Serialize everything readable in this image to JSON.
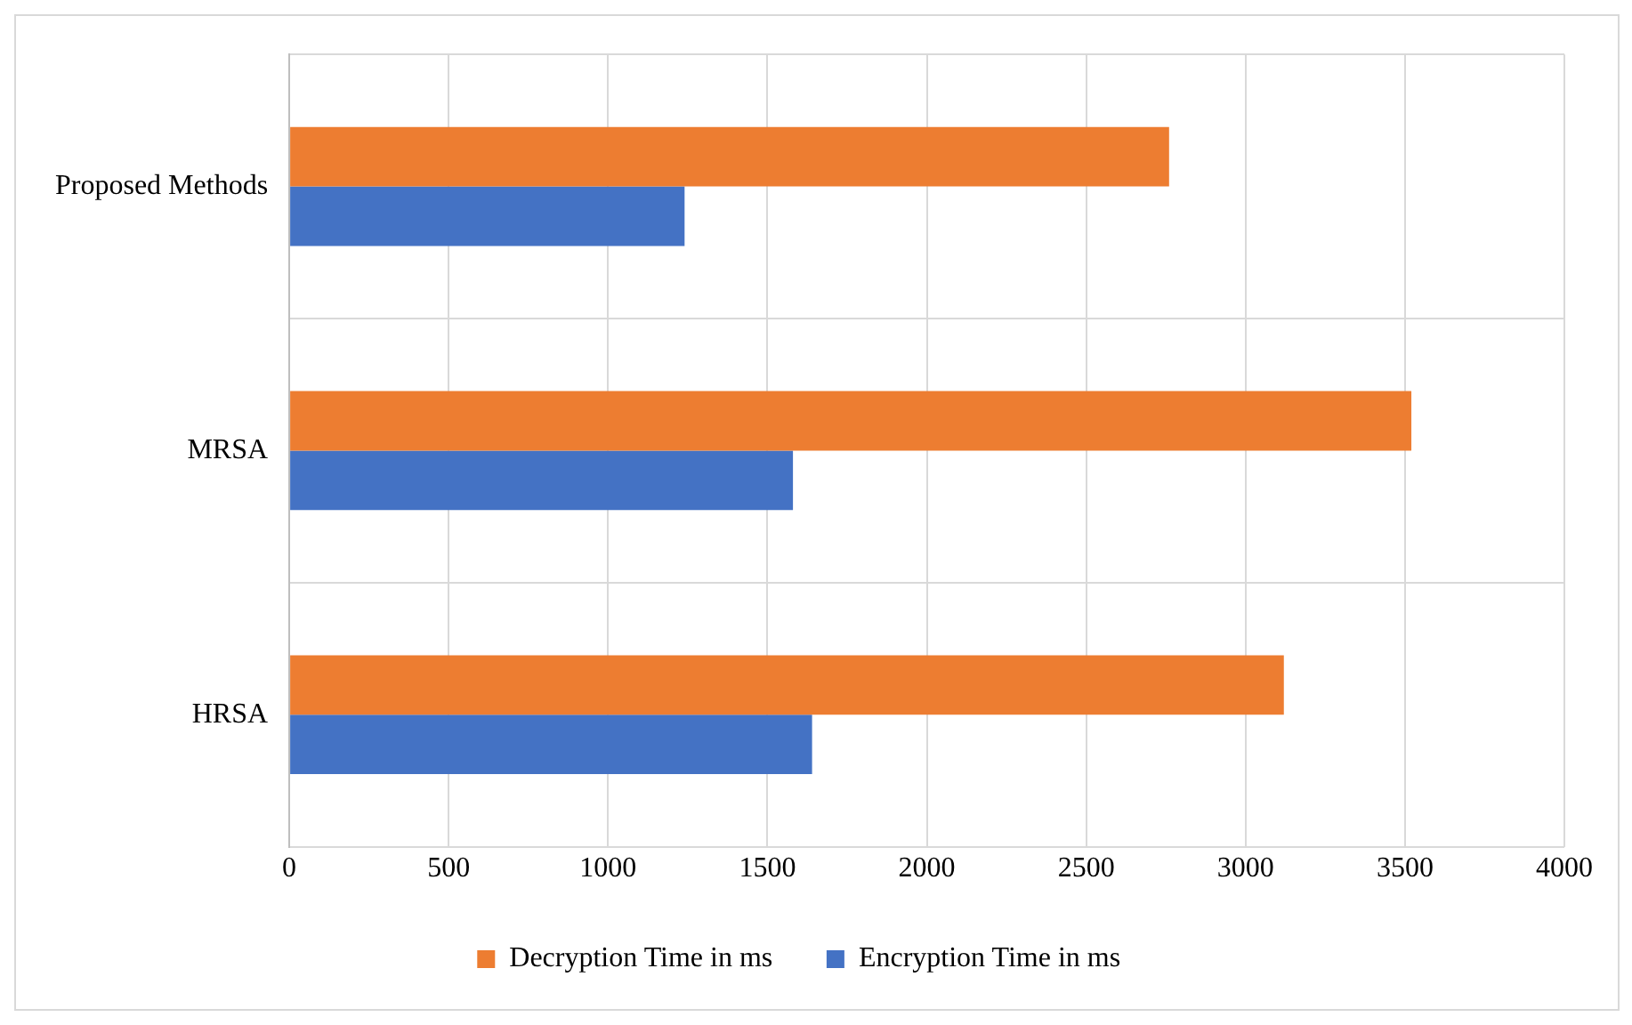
{
  "chart_data": {
    "type": "bar",
    "orientation": "horizontal",
    "categories": [
      "Proposed Methods",
      "MRSA",
      "HRSA"
    ],
    "series": [
      {
        "name": "Decryption Time in ms",
        "color": "#ed7d31",
        "values": [
          2760,
          3520,
          3120
        ]
      },
      {
        "name": "Encryption Time in ms",
        "color": "#4472c4",
        "values": [
          1240,
          1580,
          1640
        ]
      }
    ],
    "xlim": [
      0,
      4000
    ],
    "xticks": [
      0,
      500,
      1000,
      1500,
      2000,
      2500,
      3000,
      3500,
      4000
    ],
    "grid": true,
    "legend": "bottom"
  }
}
